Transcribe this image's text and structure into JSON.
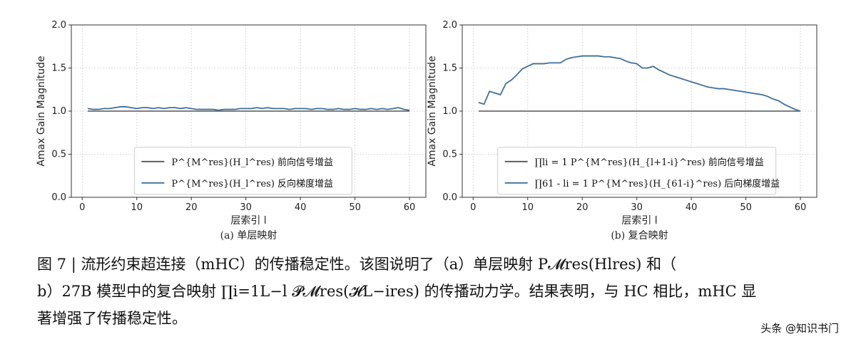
{
  "chart_data": [
    {
      "type": "line",
      "subcaption": "(a) 单层映射",
      "xlabel": "层索引 l",
      "ylabel": "Amax Gain Magnitude",
      "xlim": [
        -2,
        63
      ],
      "ylim": [
        0.0,
        2.0
      ],
      "xticks": [
        "0",
        "10",
        "20",
        "30",
        "40",
        "50",
        "60"
      ],
      "yticks": [
        "0.0",
        "0.5",
        "1.0",
        "1.5",
        "2.0"
      ],
      "grid": true,
      "legend_position": "lower-center",
      "series": [
        {
          "name": "P^{M^res}(H_l^res) 前向信号增益",
          "legend_label": "P^{M^res}(H_l^res) 前向信号增益",
          "color": "#555555",
          "x": [
            1,
            60
          ],
          "y": [
            1.0,
            1.0
          ]
        },
        {
          "name": "P^{M^res}(H_l^res) 反向梯度增益",
          "legend_label": "P^{M^res}(H_l^res) 反向梯度增益",
          "color": "#3f6f99",
          "x": [
            1,
            2,
            3,
            4,
            5,
            6,
            7,
            8,
            9,
            10,
            11,
            12,
            13,
            14,
            15,
            16,
            17,
            18,
            19,
            20,
            21,
            22,
            23,
            24,
            25,
            26,
            27,
            28,
            29,
            30,
            31,
            32,
            33,
            34,
            35,
            36,
            37,
            38,
            39,
            40,
            41,
            42,
            43,
            44,
            45,
            46,
            47,
            48,
            49,
            50,
            51,
            52,
            53,
            54,
            55,
            56,
            57,
            58,
            59,
            60
          ],
          "y": [
            1.03,
            1.02,
            1.02,
            1.03,
            1.03,
            1.04,
            1.05,
            1.05,
            1.04,
            1.03,
            1.04,
            1.04,
            1.03,
            1.04,
            1.03,
            1.04,
            1.04,
            1.03,
            1.04,
            1.03,
            1.02,
            1.02,
            1.02,
            1.02,
            1.01,
            1.02,
            1.02,
            1.02,
            1.03,
            1.03,
            1.03,
            1.04,
            1.03,
            1.04,
            1.03,
            1.03,
            1.03,
            1.02,
            1.03,
            1.03,
            1.03,
            1.02,
            1.03,
            1.03,
            1.02,
            1.02,
            1.03,
            1.02,
            1.02,
            1.03,
            1.02,
            1.02,
            1.03,
            1.02,
            1.03,
            1.02,
            1.03,
            1.04,
            1.02,
            1.01
          ]
        }
      ]
    },
    {
      "type": "line",
      "subcaption": "(b) 复合映射",
      "xlabel": "层索引 l",
      "ylabel": "Amax Gain Magnitude",
      "xlim": [
        -2,
        63
      ],
      "ylim": [
        0.0,
        2.0
      ],
      "xticks": [
        "0",
        "10",
        "20",
        "30",
        "40",
        "50",
        "60"
      ],
      "yticks": [
        "0.0",
        "0.5",
        "1.0",
        "1.5",
        "2.0"
      ],
      "grid": true,
      "legend_position": "lower-center",
      "series": [
        {
          "name": "∏li = 1 P^{M^res}(H_{l+1-i}^res) 前向信号增益",
          "legend_label": "∏li = 1 P^{M^res}(H_{l+1-i}^res) 前向信号增益",
          "color": "#555555",
          "x": [
            1,
            60
          ],
          "y": [
            1.0,
            1.0
          ]
        },
        {
          "name": "∏61 - li = 1 P^{M^res}(H_{61-i}^res) 后向梯度增益",
          "legend_label": "∏61 - li = 1 P^{M^res}(H_{61-i}^res) 后向梯度增益",
          "color": "#3f6f99",
          "x": [
            1,
            2,
            3,
            4,
            5,
            6,
            7,
            8,
            9,
            10,
            11,
            12,
            13,
            14,
            15,
            16,
            17,
            18,
            19,
            20,
            21,
            22,
            23,
            24,
            25,
            26,
            27,
            28,
            29,
            30,
            31,
            32,
            33,
            34,
            35,
            36,
            37,
            38,
            39,
            40,
            41,
            42,
            43,
            44,
            45,
            46,
            47,
            48,
            49,
            50,
            51,
            52,
            53,
            54,
            55,
            56,
            57,
            58,
            59,
            60
          ],
          "y": [
            1.1,
            1.08,
            1.23,
            1.21,
            1.19,
            1.32,
            1.36,
            1.42,
            1.49,
            1.52,
            1.55,
            1.55,
            1.55,
            1.56,
            1.56,
            1.56,
            1.6,
            1.62,
            1.63,
            1.64,
            1.64,
            1.64,
            1.64,
            1.63,
            1.63,
            1.62,
            1.61,
            1.58,
            1.56,
            1.55,
            1.5,
            1.5,
            1.52,
            1.48,
            1.45,
            1.42,
            1.4,
            1.38,
            1.36,
            1.34,
            1.32,
            1.3,
            1.28,
            1.27,
            1.26,
            1.26,
            1.25,
            1.24,
            1.23,
            1.22,
            1.21,
            1.2,
            1.19,
            1.17,
            1.14,
            1.12,
            1.08,
            1.05,
            1.02,
            1.0
          ]
        }
      ]
    }
  ],
  "caption": {
    "line1": "图 7 | 流形约束超连接（mHC）的传播稳定性。该图说明了（a）单层映射 P𝓜res(Hlres) 和（",
    "line2": "b）27B 模型中的复合映射 ∏i=1L−l 𝓟𝓜res(𝓗L−ires) 的传播动力学。结果表明，与 HC 相比，mHC 显",
    "line3": "著增强了传播稳定性。"
  },
  "watermark": "头条 @知识书门"
}
